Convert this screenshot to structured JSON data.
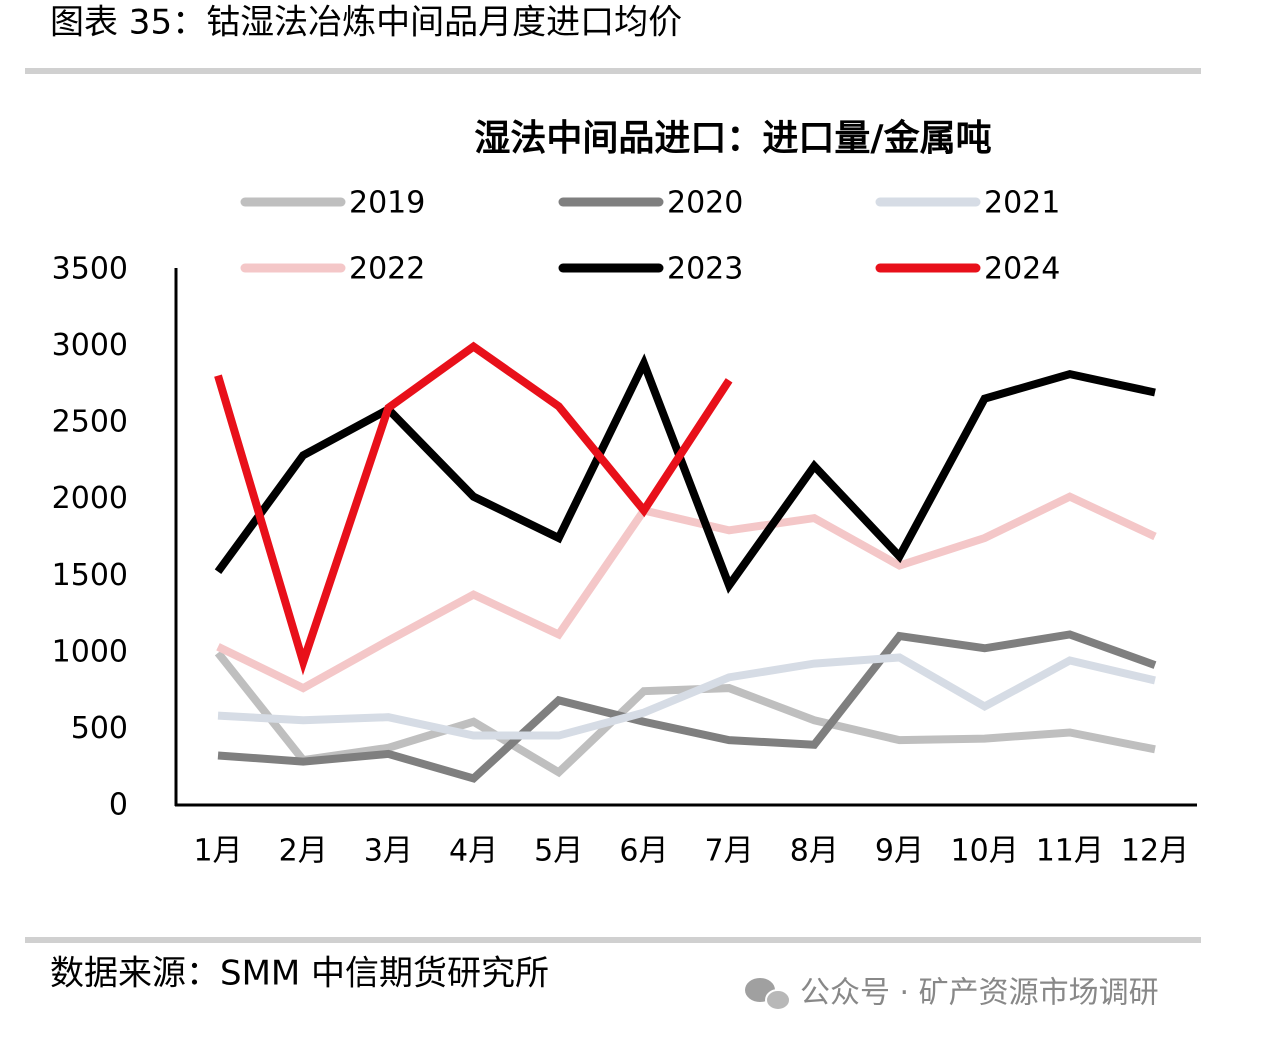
{
  "header": {
    "title": "图表 35：钴湿法冶炼中间品月度进口均价"
  },
  "chart_data": {
    "type": "line",
    "title": "湿法中间品进口：进口量/金属吨",
    "categories": [
      "1月",
      "2月",
      "3月",
      "4月",
      "5月",
      "6月",
      "7月",
      "8月",
      "9月",
      "10月",
      "11月",
      "12月"
    ],
    "series": [
      {
        "name": "2019",
        "color": "#bfbfbf",
        "values": [
          1000,
          300,
          380,
          550,
          220,
          750,
          770,
          560,
          430,
          440,
          480,
          370
        ]
      },
      {
        "name": "2020",
        "color": "#7f7f7f",
        "values": [
          330,
          290,
          340,
          180,
          690,
          550,
          430,
          400,
          1110,
          1030,
          1120,
          920
        ]
      },
      {
        "name": "2021",
        "color": "#d6dce5",
        "values": [
          590,
          560,
          580,
          460,
          460,
          610,
          840,
          930,
          970,
          650,
          950,
          820
        ]
      },
      {
        "name": "2022",
        "color": "#f4c7c8",
        "values": [
          1040,
          770,
          1080,
          1380,
          1120,
          1930,
          1800,
          1880,
          1570,
          1750,
          2020,
          1760
        ]
      },
      {
        "name": "2023",
        "color": "#000000",
        "values": [
          1530,
          2290,
          2590,
          2020,
          1750,
          2890,
          1440,
          2220,
          1630,
          2660,
          2820,
          2700
        ]
      },
      {
        "name": "2024",
        "color": "#e8101a",
        "values": [
          2810,
          940,
          2600,
          3000,
          2610,
          1930,
          2780,
          null,
          null,
          null,
          null,
          null
        ]
      }
    ],
    "ylim": [
      0,
      3500
    ],
    "yticks": [
      0,
      500,
      1000,
      1500,
      2000,
      2500,
      3000,
      3500
    ],
    "grid": false,
    "legend": "top"
  },
  "footer": {
    "source": "数据来源：SMM 中信期货研究所",
    "watermark": "公众号 · 矿产资源市场调研"
  }
}
